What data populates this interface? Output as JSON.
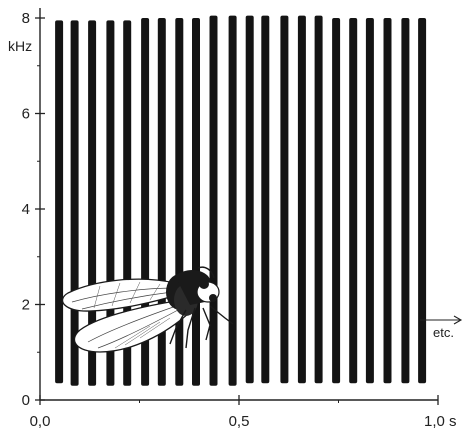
{
  "chart_data": {
    "type": "spectrogram",
    "title": "",
    "xlabel": "",
    "ylabel": "",
    "y_unit": "kHz",
    "x_unit": "s",
    "xlim": [
      0.0,
      1.0
    ],
    "ylim": [
      0,
      8
    ],
    "x_ticks": [
      {
        "value": 0.0,
        "label": "0,0"
      },
      {
        "value": 0.5,
        "label": "0,5"
      },
      {
        "value": 1.0,
        "label": "1,0 s"
      }
    ],
    "y_ticks": [
      {
        "value": 0,
        "label": "0"
      },
      {
        "value": 2,
        "label": "2"
      },
      {
        "value": 4,
        "label": "4"
      },
      {
        "value": 6,
        "label": "6"
      },
      {
        "value": 8,
        "label": "8"
      }
    ],
    "pulses": [
      {
        "t": 0.048,
        "f_low": 0.35,
        "f_high": 7.95
      },
      {
        "t": 0.087,
        "f_low": 0.3,
        "f_high": 7.95
      },
      {
        "t": 0.131,
        "f_low": 0.3,
        "f_high": 7.95
      },
      {
        "t": 0.177,
        "f_low": 0.3,
        "f_high": 7.95
      },
      {
        "t": 0.219,
        "f_low": 0.3,
        "f_high": 7.95
      },
      {
        "t": 0.264,
        "f_low": 0.3,
        "f_high": 8.0
      },
      {
        "t": 0.306,
        "f_low": 0.3,
        "f_high": 8.0
      },
      {
        "t": 0.35,
        "f_low": 0.3,
        "f_high": 8.0
      },
      {
        "t": 0.392,
        "f_low": 0.3,
        "f_high": 8.0
      },
      {
        "t": 0.436,
        "f_low": 0.3,
        "f_high": 8.05
      },
      {
        "t": 0.484,
        "f_low": 0.3,
        "f_high": 8.05
      },
      {
        "t": 0.527,
        "f_low": 0.35,
        "f_high": 8.05
      },
      {
        "t": 0.566,
        "f_low": 0.35,
        "f_high": 8.05
      },
      {
        "t": 0.614,
        "f_low": 0.35,
        "f_high": 8.05
      },
      {
        "t": 0.658,
        "f_low": 0.35,
        "f_high": 8.05
      },
      {
        "t": 0.7,
        "f_low": 0.35,
        "f_high": 8.05
      },
      {
        "t": 0.744,
        "f_low": 0.35,
        "f_high": 8.0
      },
      {
        "t": 0.787,
        "f_low": 0.35,
        "f_high": 8.0
      },
      {
        "t": 0.829,
        "f_low": 0.35,
        "f_high": 8.0
      },
      {
        "t": 0.873,
        "f_low": 0.35,
        "f_high": 8.0
      },
      {
        "t": 0.918,
        "f_low": 0.35,
        "f_high": 8.0
      },
      {
        "t": 0.96,
        "f_low": 0.35,
        "f_high": 8.0
      }
    ],
    "annotation": {
      "text": "etc.",
      "arrow": "right"
    },
    "illustration": "cicada",
    "colors": {
      "pulse": "#141414",
      "axis": "#222222"
    }
  }
}
